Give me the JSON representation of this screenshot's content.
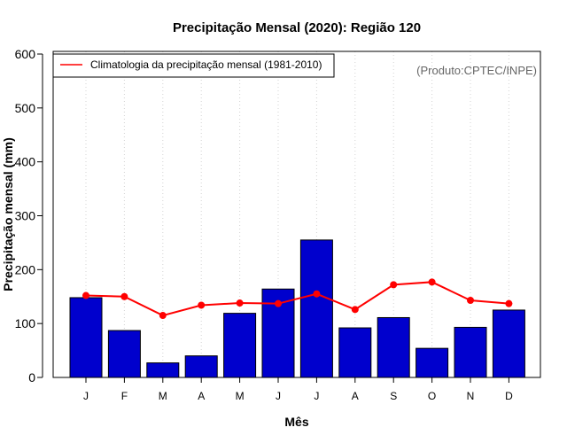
{
  "chart_data": {
    "type": "bar",
    "title": "Precipitação Mensal (2020): Região 120",
    "xlabel": "Mês",
    "ylabel": "Precipitação mensal (mm)",
    "ylim": [
      0,
      600
    ],
    "yticks": [
      0,
      100,
      200,
      300,
      400,
      500,
      600
    ],
    "categories": [
      "J",
      "F",
      "M",
      "A",
      "M",
      "J",
      "J",
      "A",
      "S",
      "O",
      "N",
      "D"
    ],
    "series": [
      {
        "name": "Precipitação mensal 2020",
        "type": "bar",
        "color": "#0000CD",
        "values": [
          148,
          87,
          27,
          40,
          119,
          164,
          255,
          92,
          111,
          54,
          93,
          125
        ]
      },
      {
        "name": "Climatologia da precipitação mensal (1981-2010)",
        "type": "line",
        "color": "#FF0000",
        "values": [
          152,
          150,
          115,
          134,
          138,
          137,
          155,
          126,
          172,
          177,
          143,
          137
        ]
      }
    ],
    "legend": {
      "position": "top-left",
      "entries": [
        "Climatologia da precipitação mensal (1981-2010)"
      ]
    },
    "annotation": "(Produto:CPTEC/INPE)",
    "grid": "vertical dotted"
  }
}
